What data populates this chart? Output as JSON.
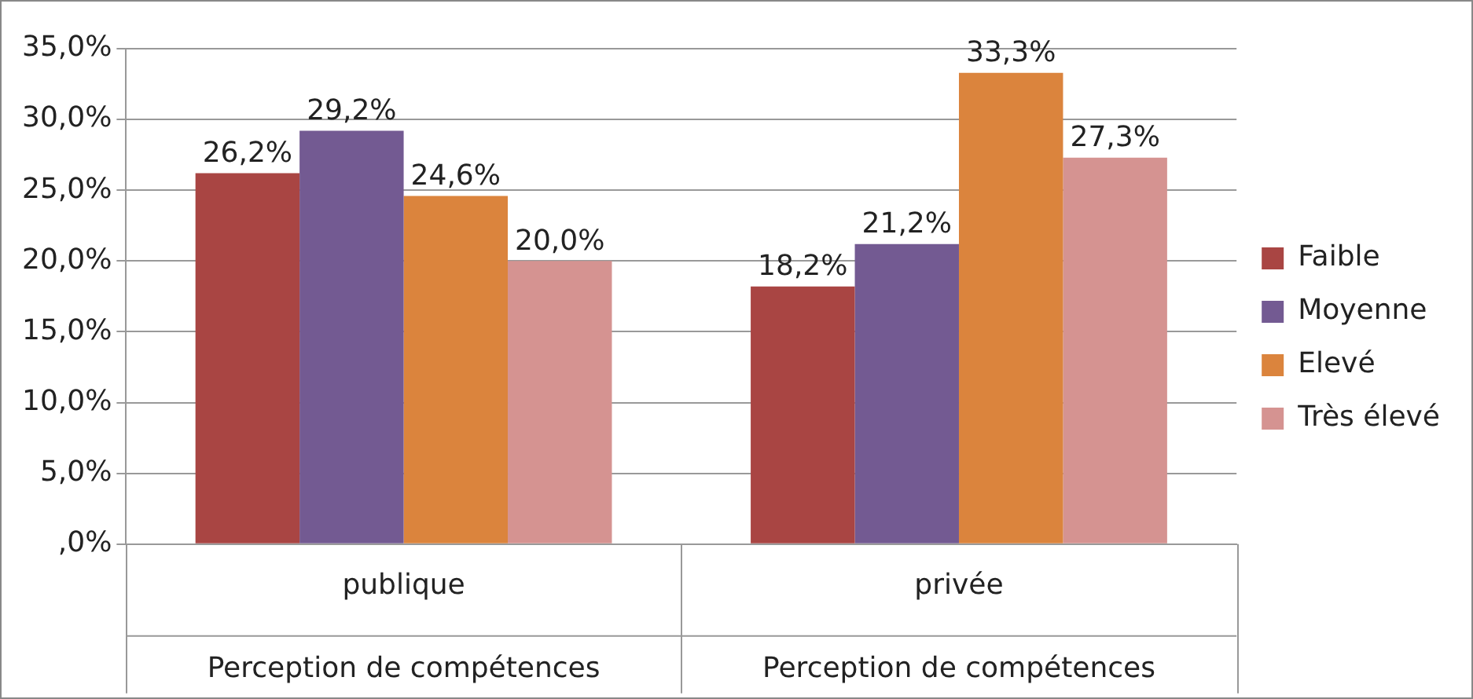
{
  "chart_data": {
    "type": "bar",
    "categories": [
      "publique",
      "privée"
    ],
    "series": [
      {
        "name": "Faible",
        "color": "#a94543",
        "values": [
          26.2,
          18.2
        ],
        "value_labels": [
          "26,2%",
          "18,2%"
        ]
      },
      {
        "name": "Moyenne",
        "color": "#735a92",
        "values": [
          29.2,
          21.2
        ],
        "value_labels": [
          "29,2%",
          "21,2%"
        ]
      },
      {
        "name": "Elevé",
        "color": "#db843d",
        "values": [
          24.6,
          33.3
        ],
        "value_labels": [
          "24,6%",
          "33,3%"
        ]
      },
      {
        "name": "Très élevé",
        "color": "#d59391",
        "values": [
          20.0,
          27.3
        ],
        "value_labels": [
          "20,0%",
          "27,3%"
        ]
      }
    ],
    "ylim": [
      0,
      35
    ],
    "yticks": [
      {
        "value": 0,
        "label": ",0%"
      },
      {
        "value": 5,
        "label": "5,0%"
      },
      {
        "value": 10,
        "label": "10,0%"
      },
      {
        "value": 15,
        "label": "15,0%"
      },
      {
        "value": 20,
        "label": "20,0%"
      },
      {
        "value": 25,
        "label": "25,0%"
      },
      {
        "value": 30,
        "label": "30,0%"
      },
      {
        "value": 35,
        "label": "35,0%"
      }
    ],
    "annotations": [
      "Perception de compétences",
      "Perception de compétences"
    ],
    "grid": "y",
    "legend": "right"
  }
}
